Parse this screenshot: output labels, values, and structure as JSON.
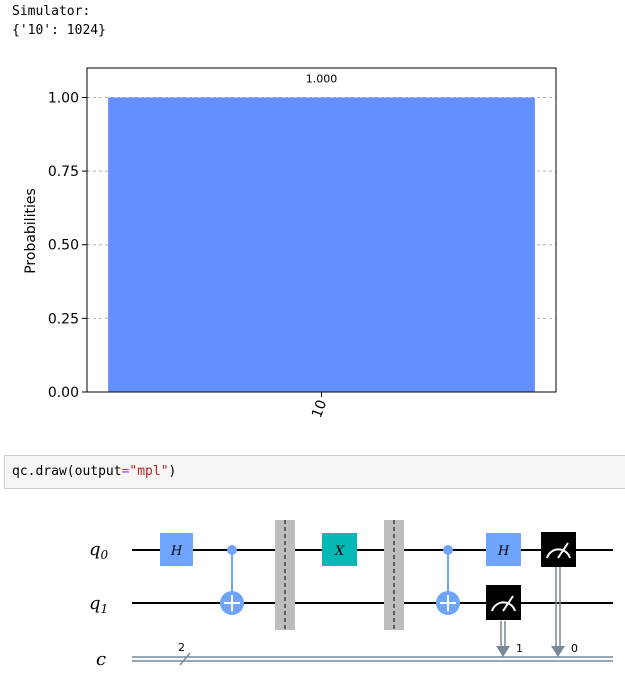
{
  "output": {
    "label": "Simulator:",
    "counts_text": "{'10': 1024}"
  },
  "chart_data": {
    "type": "bar",
    "categories": [
      "10"
    ],
    "values": [
      1.0
    ],
    "data_labels": [
      "1.000"
    ],
    "ylabel": "Probabilities",
    "ylim": [
      0,
      1.1
    ],
    "yticks": [
      "0.00",
      "0.25",
      "0.50",
      "0.75",
      "1.00"
    ],
    "grid": "y-dashed",
    "bar_color": "#648fff"
  },
  "code_cell": {
    "prefix": "qc.draw(output",
    "eq": "=",
    "arg": "\"mpl\"",
    "suffix": ")"
  },
  "circuit": {
    "wires": [
      {
        "label": "q",
        "sub": "0"
      },
      {
        "label": "q",
        "sub": "1"
      },
      {
        "label": "c",
        "sub": ""
      }
    ],
    "classical_width": "2",
    "measure_bits": [
      "1",
      "0"
    ],
    "gates": {
      "h": "H",
      "x": "X"
    },
    "colors": {
      "h_gate": "#6fa4ff",
      "x_gate": "#05bab6",
      "cx": "#6fa4ff",
      "barrier": "#bdbdbd",
      "measure": "#000000",
      "classical_wire": "#778899"
    }
  }
}
